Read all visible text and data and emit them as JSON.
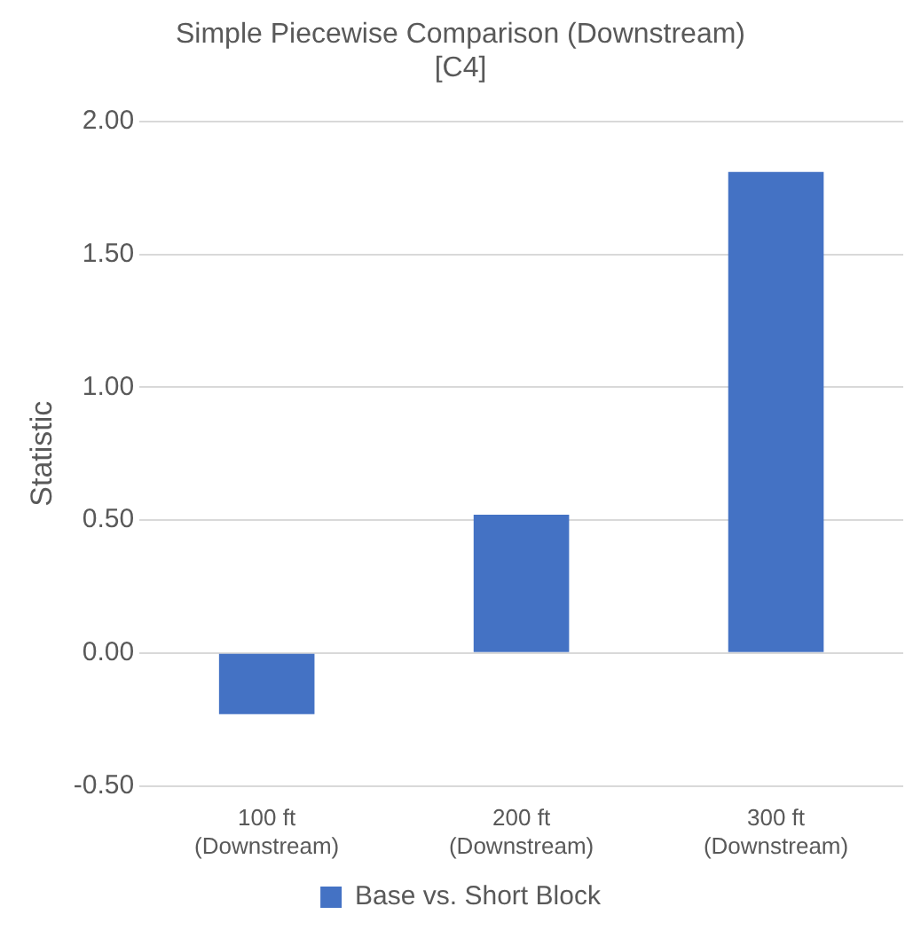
{
  "chart_data": {
    "type": "bar",
    "title": "Simple Piecewise Comparison (Downstream)\n[C4]",
    "ylabel": "Statistic",
    "categories": [
      "100 ft (Downstream)",
      "200 ft (Downstream)",
      "300 ft (Downstream)"
    ],
    "series": [
      {
        "name": "Base vs. Short Block",
        "color": "#4472c4",
        "values": [
          -0.23,
          0.52,
          1.81
        ]
      }
    ],
    "ylim": [
      -0.5,
      2
    ],
    "yticks": [
      {
        "value": -0.5,
        "label": "-0.50"
      },
      {
        "value": 0,
        "label": "0.00"
      },
      {
        "value": 0.5,
        "label": "0.50"
      },
      {
        "value": 1,
        "label": "1.00"
      },
      {
        "value": 1.5,
        "label": "1.50"
      },
      {
        "value": 2,
        "label": "2.00"
      }
    ],
    "grid": "y",
    "legend": "bottom"
  }
}
